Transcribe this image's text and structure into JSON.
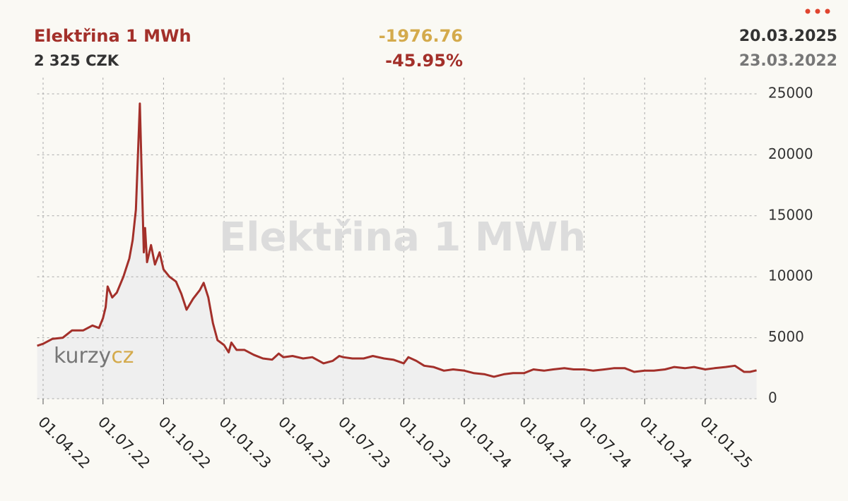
{
  "header": {
    "title": "Elektřina 1 MWh",
    "price": "2 325 CZK",
    "change": "-1976.76",
    "change_pct": "-45.95%",
    "date_end": "20.03.2025",
    "date_start": "23.03.2022"
  },
  "logo": {
    "left": "kurzy",
    "right": "cz"
  },
  "chart_data": {
    "type": "line",
    "grid": true,
    "color": "#a3302a",
    "area_color": "#efefef",
    "xlim": [
      "2022-03-23",
      "2025-03-20"
    ],
    "ylim": [
      0,
      25000
    ],
    "yticks": [
      0,
      5000,
      10000,
      15000,
      20000,
      25000
    ],
    "xticks": [
      {
        "value": "2022-04-01",
        "label": "01.04.22"
      },
      {
        "value": "2022-07-01",
        "label": "01.07.22"
      },
      {
        "value": "2022-10-01",
        "label": "01.10.22"
      },
      {
        "value": "2023-01-01",
        "label": "01.01.23"
      },
      {
        "value": "2023-04-01",
        "label": "01.04.23"
      },
      {
        "value": "2023-07-01",
        "label": "01.07.23"
      },
      {
        "value": "2023-10-01",
        "label": "01.10.23"
      },
      {
        "value": "2024-01-01",
        "label": "01.01.24"
      },
      {
        "value": "2024-04-01",
        "label": "01.04.24"
      },
      {
        "value": "2024-07-01",
        "label": "01.07.24"
      },
      {
        "value": "2024-10-01",
        "label": "01.10.24"
      },
      {
        "value": "2025-01-01",
        "label": "01.01.25"
      }
    ],
    "x": [
      "2022-03-23",
      "2022-04-01",
      "2022-04-15",
      "2022-05-01",
      "2022-05-15",
      "2022-06-01",
      "2022-06-15",
      "2022-06-25",
      "2022-07-01",
      "2022-07-05",
      "2022-07-08",
      "2022-07-15",
      "2022-07-22",
      "2022-08-01",
      "2022-08-10",
      "2022-08-15",
      "2022-08-20",
      "2022-08-26",
      "2022-08-29",
      "2022-09-01",
      "2022-09-03",
      "2022-09-06",
      "2022-09-12",
      "2022-09-18",
      "2022-09-25",
      "2022-10-01",
      "2022-10-10",
      "2022-10-20",
      "2022-10-28",
      "2022-11-05",
      "2022-11-15",
      "2022-11-25",
      "2022-12-01",
      "2022-12-08",
      "2022-12-15",
      "2022-12-22",
      "2023-01-01",
      "2023-01-08",
      "2023-01-12",
      "2023-01-20",
      "2023-02-01",
      "2023-02-15",
      "2023-03-01",
      "2023-03-15",
      "2023-03-25",
      "2023-04-01",
      "2023-04-15",
      "2023-05-01",
      "2023-05-15",
      "2023-06-01",
      "2023-06-15",
      "2023-06-25",
      "2023-07-01",
      "2023-07-15",
      "2023-08-01",
      "2023-08-15",
      "2023-09-01",
      "2023-09-15",
      "2023-10-01",
      "2023-10-08",
      "2023-10-20",
      "2023-11-01",
      "2023-11-15",
      "2023-12-01",
      "2023-12-15",
      "2024-01-01",
      "2024-01-15",
      "2024-02-01",
      "2024-02-15",
      "2024-03-01",
      "2024-03-15",
      "2024-04-01",
      "2024-04-15",
      "2024-05-01",
      "2024-05-15",
      "2024-06-01",
      "2024-06-15",
      "2024-07-01",
      "2024-07-15",
      "2024-08-01",
      "2024-08-15",
      "2024-09-01",
      "2024-09-15",
      "2024-10-01",
      "2024-10-15",
      "2024-11-01",
      "2024-11-15",
      "2024-12-01",
      "2024-12-15",
      "2025-01-01",
      "2025-01-15",
      "2025-02-01",
      "2025-02-15",
      "2025-03-01",
      "2025-03-10",
      "2025-03-20"
    ],
    "values": [
      4340,
      4500,
      4900,
      5000,
      5600,
      5600,
      6000,
      5800,
      6600,
      7500,
      9200,
      8300,
      8700,
      10000,
      11500,
      13000,
      15500,
      24200,
      18000,
      12000,
      14000,
      11200,
      12600,
      11000,
      12000,
      10600,
      10000,
      9600,
      8600,
      7300,
      8200,
      8900,
      9500,
      8300,
      6200,
      4800,
      4400,
      3800,
      4600,
      4000,
      4000,
      3600,
      3300,
      3200,
      3700,
      3400,
      3500,
      3300,
      3400,
      2900,
      3100,
      3500,
      3400,
      3300,
      3300,
      3500,
      3300,
      3200,
      2900,
      3400,
      3100,
      2700,
      2600,
      2300,
      2400,
      2300,
      2100,
      2000,
      1800,
      2000,
      2100,
      2100,
      2400,
      2300,
      2400,
      2500,
      2400,
      2400,
      2300,
      2400,
      2500,
      2500,
      2200,
      2300,
      2300,
      2400,
      2600,
      2500,
      2600,
      2400,
      2500,
      2600,
      2700,
      2200,
      2200,
      2325
    ]
  }
}
